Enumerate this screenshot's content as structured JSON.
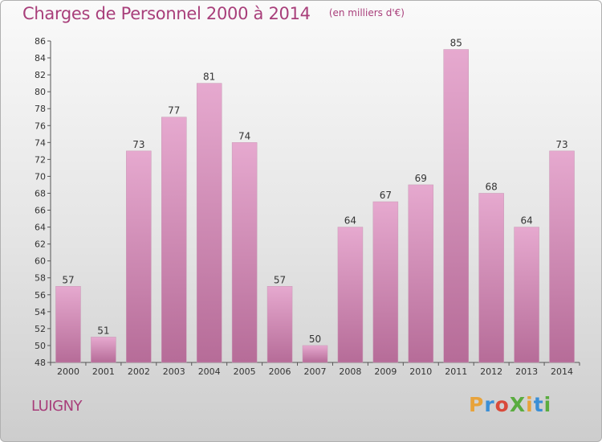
{
  "title": "Charges de Personnel 2000 à 2014",
  "subtitle": "(en milliers d'€)",
  "commune": "LUIGNY",
  "brand": {
    "text": "ProXiti",
    "colors": [
      "#e8a33b",
      "#3b8fd6",
      "#d94a3a",
      "#5aac3f",
      "#e8a33b",
      "#3b8fd6",
      "#5aac3f"
    ]
  },
  "colors": {
    "bar_top": "#e6a9cf",
    "bar_bottom": "#b66c98",
    "text_accent": "#a83e7a"
  },
  "chart_data": {
    "type": "bar",
    "categories": [
      "2000",
      "2001",
      "2002",
      "2003",
      "2004",
      "2005",
      "2006",
      "2007",
      "2008",
      "2009",
      "2010",
      "2011",
      "2012",
      "2013",
      "2014"
    ],
    "values": [
      57,
      51,
      73,
      77,
      81,
      74,
      57,
      50,
      64,
      67,
      69,
      85,
      68,
      64,
      73
    ],
    "ylim": [
      48,
      86
    ],
    "yticks": [
      48,
      50,
      52,
      54,
      56,
      58,
      60,
      62,
      64,
      66,
      68,
      70,
      72,
      74,
      76,
      78,
      80,
      82,
      84,
      86
    ],
    "grid": false,
    "show_value_labels": true
  }
}
